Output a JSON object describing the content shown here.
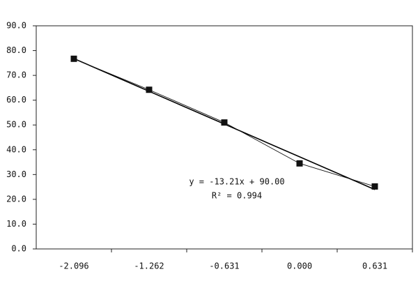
{
  "chart_data": {
    "type": "line",
    "categories": [
      "-2.096",
      "-1.262",
      "-0.631",
      "0.000",
      "0.631"
    ],
    "series": [
      {
        "color": "#111111",
        "values": [
          76.7,
          64.2,
          51.0,
          34.5,
          25.2
        ]
      }
    ],
    "trendline": {
      "color": "#000000",
      "values": [
        76.79,
        63.58,
        50.37,
        37.16,
        23.95
      ]
    },
    "annotations": [
      "y = -13.21x + 90.00",
      "R² = 0.994"
    ],
    "ylim": [
      0,
      90
    ],
    "yticks": [
      {
        "value": 0,
        "label": "0.0"
      },
      {
        "value": 10,
        "label": "10.0"
      },
      {
        "value": 20,
        "label": "20.0"
      },
      {
        "value": 30,
        "label": "30.0"
      },
      {
        "value": 40,
        "label": "40.0"
      },
      {
        "value": 50,
        "label": "50.0"
      },
      {
        "value": 60,
        "label": "60.0"
      },
      {
        "value": 70,
        "label": "70.0"
      },
      {
        "value": 80,
        "label": "80.0"
      },
      {
        "value": 90,
        "label": "90.0"
      }
    ],
    "grid": false
  }
}
